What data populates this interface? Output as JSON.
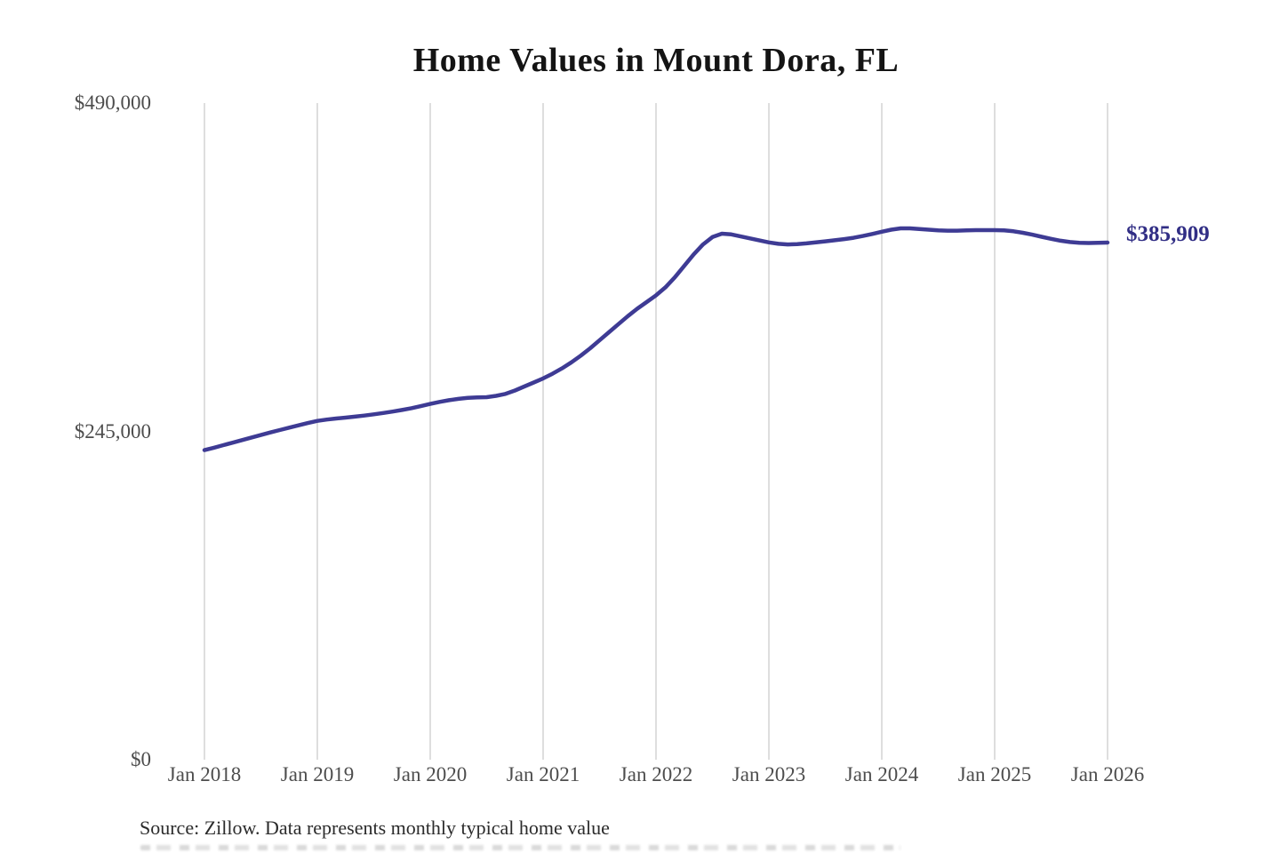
{
  "title": "Home Values in Mount Dora, FL",
  "source_note": "Source: Zillow. Data represents monthly typical home value",
  "colors": {
    "line": "#3e3b94",
    "end_label": "#312e85",
    "gridline": "#cccccc",
    "tick_label": "#4d4d4d",
    "title": "#141414",
    "source": "#2b2b2b"
  },
  "chart_data": {
    "type": "line",
    "title": "Home Values in Mount Dora, FL",
    "xlabel": "",
    "ylabel": "",
    "x_frequency": "monthly",
    "x_start": "Jan 2018",
    "x_end": "Jan 2026",
    "x_tick_labels": [
      "Jan 2018",
      "Jan 2019",
      "Jan 2020",
      "Jan 2021",
      "Jan 2022",
      "Jan 2023",
      "Jan 2024",
      "Jan 2025",
      "Jan 2026"
    ],
    "y_ticks": [
      {
        "label": "$0",
        "value": 0
      },
      {
        "label": "$245,000",
        "value": 245000
      },
      {
        "label": "$490,000",
        "value": 490000
      }
    ],
    "ylim": [
      0,
      490000
    ],
    "grid": "vertical-only",
    "legend": "none",
    "series": [
      {
        "name": "Typical home value ($)",
        "values": [
          231000,
          232800,
          234700,
          236600,
          238500,
          240400,
          242300,
          244200,
          246000,
          247800,
          249500,
          251200,
          252800,
          253800,
          254600,
          255300,
          256000,
          256800,
          257700,
          258700,
          259800,
          261000,
          262300,
          263800,
          265500,
          267000,
          268300,
          269300,
          270000,
          270300,
          270500,
          271500,
          273000,
          275500,
          278500,
          281500,
          284500,
          288000,
          292000,
          296500,
          301500,
          307000,
          313000,
          319000,
          325000,
          331000,
          336500,
          341500,
          346500,
          352500,
          360000,
          368500,
          377000,
          384500,
          390000,
          392500,
          392000,
          390500,
          389000,
          387500,
          386000,
          385000,
          384500,
          384800,
          385300,
          386000,
          386800,
          387600,
          388500,
          389500,
          390800,
          392300,
          394000,
          395500,
          396500,
          396500,
          396000,
          395500,
          395000,
          394800,
          394800,
          395000,
          395200,
          395200,
          395200,
          395000,
          394300,
          393200,
          391800,
          390200,
          388700,
          387300,
          386300,
          385800,
          385600,
          385700,
          385909
        ]
      }
    ],
    "end_value": 385909,
    "end_value_label": "$385,909"
  }
}
